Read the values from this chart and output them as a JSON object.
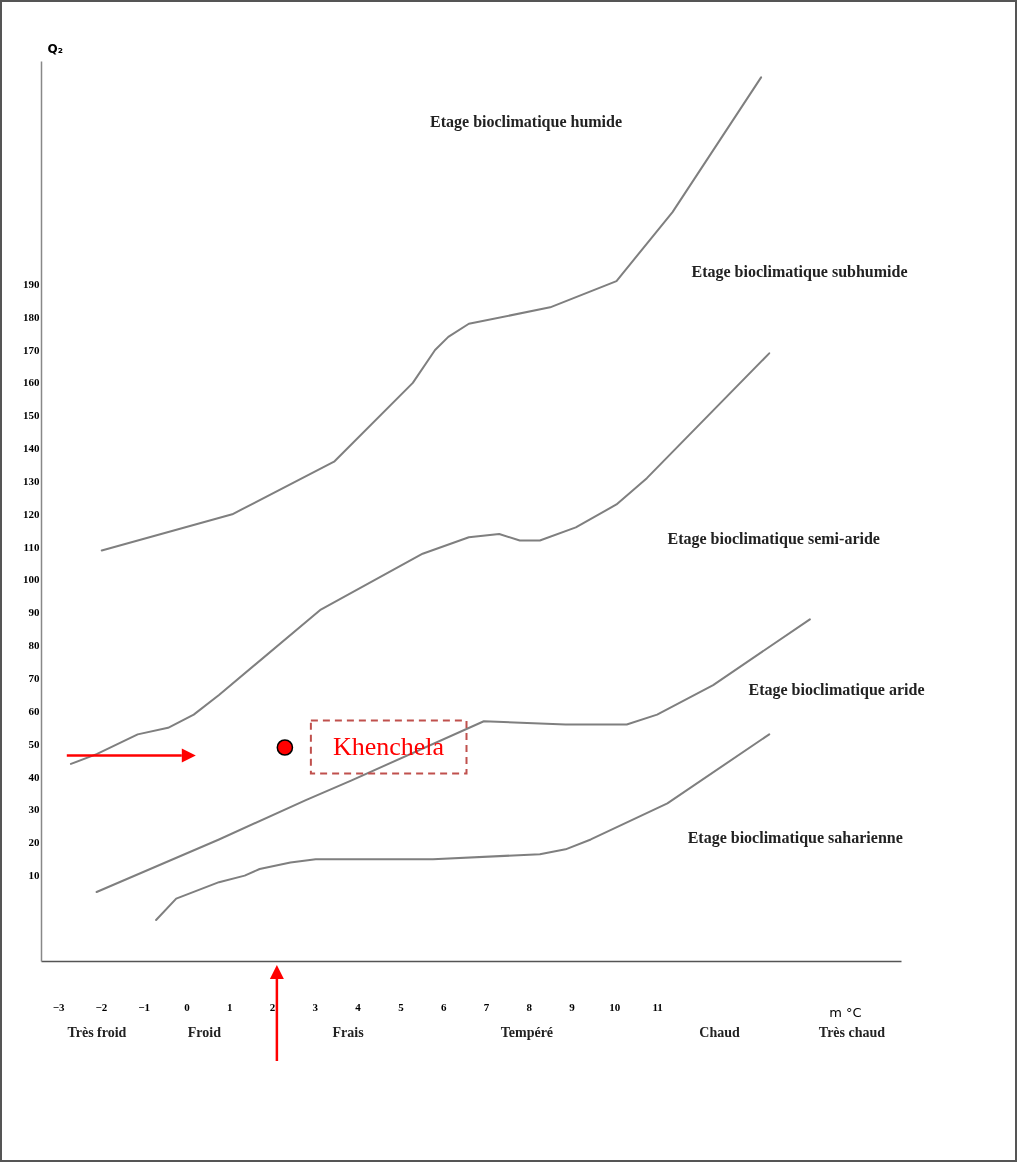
{
  "chart_data": {
    "type": "line",
    "xlabel": "m °C",
    "ylabel": "Q₂",
    "xlim": [
      -3.4,
      16.7
    ],
    "ylim": [
      -16,
      258
    ],
    "xticks": [
      -3,
      -2,
      -1,
      0,
      1,
      2,
      3,
      4,
      5,
      6,
      7,
      8,
      9,
      10,
      11
    ],
    "yticks": [
      10,
      20,
      30,
      40,
      50,
      60,
      70,
      80,
      90,
      100,
      110,
      120,
      130,
      140,
      150,
      160,
      170,
      180,
      190
    ],
    "series": [
      {
        "type": "line",
        "color": "#7f7f7f",
        "x": [
          -1.98,
          1.07,
          3.45,
          5.29,
          5.81,
          6.12,
          6.6,
          8.5,
          10.05,
          11.36,
          13.43
        ],
        "values": [
          109,
          120,
          136,
          160,
          170,
          174,
          178,
          183,
          191,
          212,
          253
        ]
      },
      {
        "type": "line",
        "color": "#7f7f7f",
        "x": [
          -2.7,
          -2.1,
          -1.14,
          -0.43,
          0.17,
          0.76,
          3.14,
          5.52,
          6.6,
          7.31,
          7.79,
          8.26,
          9.1,
          10.05,
          10.76,
          13.62
        ],
        "values": [
          44,
          47,
          53,
          55,
          59,
          65,
          91,
          108,
          113,
          114,
          112,
          112,
          116,
          123,
          131,
          169
        ]
      },
      {
        "type": "line",
        "color": "#7f7f7f",
        "x": [
          -2.1,
          0.76,
          2.79,
          3.86,
          6.95,
          8.86,
          10.29,
          11,
          12.31,
          14.57
        ],
        "values": [
          5,
          21,
          33,
          39,
          57,
          56,
          56,
          59,
          68,
          88
        ]
      },
      {
        "type": "line",
        "color": "#7f7f7f",
        "x": [
          -0.71,
          -0.24,
          0.76,
          1.36,
          1.71,
          2.43,
          3.02,
          5.76,
          8.26,
          8.86,
          9.45,
          11.24,
          13.62
        ],
        "values": [
          -3.5,
          3,
          8,
          10,
          12,
          14,
          15,
          15,
          16.5,
          18,
          21,
          32,
          53
        ]
      },
      {
        "type": "scatter",
        "name": "Khenchela",
        "color": "#ff0000",
        "x": [
          2.3
        ],
        "values": [
          49
        ]
      }
    ],
    "annotations": [
      "Etage bioclimatique  humide",
      "Etage bioclimatique  subhumide",
      "Etage bioclimatique semi-aride",
      "Etage bioclimatique  aride",
      "Etage bioclimatique  saharienne",
      "Très froid",
      "Froid",
      "Frais",
      "Tempéré",
      "Chaud",
      "Très chaud"
    ]
  }
}
